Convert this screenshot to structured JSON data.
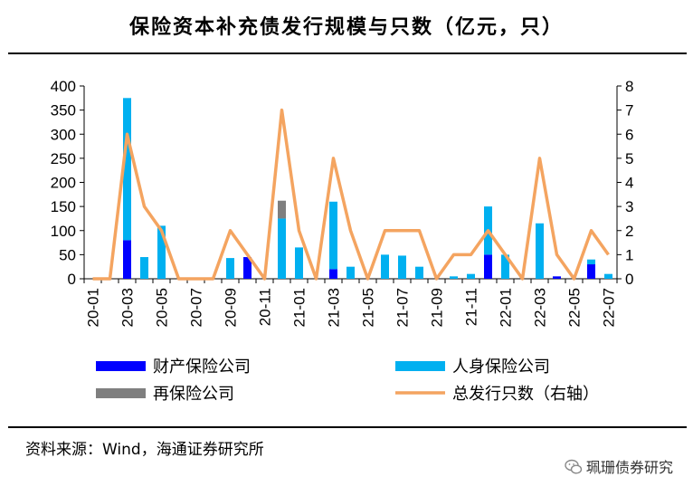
{
  "title": "保险资本补充债发行规模与只数（亿元，只）",
  "source": "资料来源：Wind，海通证券研究所",
  "watermark": "珮珊债券研究",
  "colors": {
    "property": "#0000ff",
    "life": "#00b0f0",
    "reinsurance": "#7f7f7f",
    "count": "#f4a460"
  },
  "chart_data": {
    "type": "bar",
    "stacked": true,
    "categories": [
      "20-01",
      "20-02",
      "20-03",
      "20-04",
      "20-05",
      "20-06",
      "20-07",
      "20-08",
      "20-09",
      "20-10",
      "20-11",
      "20-12",
      "21-01",
      "21-02",
      "21-03",
      "21-04",
      "21-05",
      "21-06",
      "21-07",
      "21-08",
      "21-09",
      "21-10",
      "21-11",
      "21-12",
      "22-01",
      "22-02",
      "22-03",
      "22-04",
      "22-05",
      "22-06",
      "22-07"
    ],
    "tick_labels": [
      "20-01",
      "20-03",
      "20-05",
      "20-07",
      "20-09",
      "20-11",
      "21-01",
      "21-03",
      "21-05",
      "21-07",
      "21-09",
      "21-11",
      "22-01",
      "22-03",
      "22-05",
      "22-07"
    ],
    "series": [
      {
        "name": "财产保险公司",
        "axis": "left",
        "values": [
          0,
          0,
          80,
          0,
          0,
          0,
          0,
          0,
          0,
          45,
          0,
          0,
          0,
          0,
          20,
          0,
          0,
          0,
          0,
          0,
          0,
          0,
          0,
          50,
          0,
          0,
          0,
          5,
          0,
          30,
          0
        ]
      },
      {
        "name": "人身保险公司",
        "axis": "left",
        "values": [
          0,
          0,
          295,
          45,
          110,
          0,
          0,
          0,
          43,
          0,
          0,
          125,
          65,
          0,
          140,
          25,
          0,
          50,
          48,
          25,
          0,
          5,
          10,
          100,
          50,
          0,
          115,
          0,
          0,
          10,
          10
        ]
      },
      {
        "name": "再保险公司",
        "axis": "left",
        "values": [
          0,
          0,
          0,
          0,
          0,
          0,
          0,
          0,
          0,
          0,
          0,
          37,
          0,
          0,
          0,
          0,
          0,
          0,
          0,
          0,
          0,
          0,
          0,
          0,
          0,
          0,
          0,
          0,
          0,
          0,
          0
        ]
      },
      {
        "name": "总发行只数（右轴）",
        "axis": "right",
        "type": "line",
        "values": [
          0,
          0,
          6,
          3,
          2,
          0,
          0,
          0,
          2,
          1,
          0,
          7,
          2,
          0,
          5,
          2,
          0,
          2,
          2,
          2,
          0,
          1,
          1,
          2,
          1,
          0,
          5,
          1,
          0,
          2,
          1
        ]
      }
    ],
    "ylim": [
      0,
      400
    ],
    "yticks": [
      0,
      50,
      100,
      150,
      200,
      250,
      300,
      350,
      400
    ],
    "y2lim": [
      0,
      8
    ],
    "y2ticks": [
      0,
      1,
      2,
      3,
      4,
      5,
      6,
      7,
      8
    ],
    "legend_placement": "bottom"
  }
}
